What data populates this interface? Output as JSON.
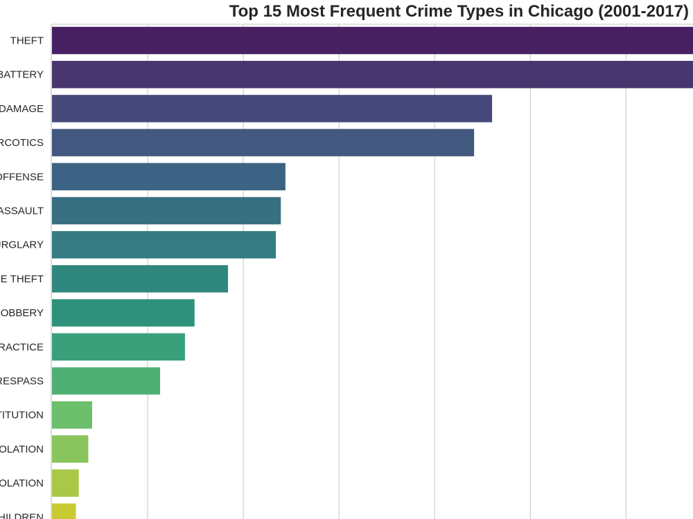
{
  "chart_data": {
    "type": "bar",
    "orientation": "horizontal",
    "title": "Top 15 Most Frequent Crime Types in Chicago (2001-2017)",
    "xlabel": "",
    "ylabel": "",
    "xlim": [
      0,
      33.5
    ],
    "grid": true,
    "categories": [
      "THEFT",
      "BATTERY",
      "DAMAGE",
      "RCOTICS",
      "OFFENSE",
      "ASSAULT",
      "URGLARY",
      "E THEFT",
      "ROBBERY",
      "RACTICE",
      "RESPASS",
      "TITUTION",
      "OLATION",
      "OLATION",
      "HILDREN"
    ],
    "values": [
      34,
      34,
      23,
      22.06,
      12.2,
      11.96,
      11.7,
      9.2,
      7.45,
      6.95,
      5.65,
      2.1,
      1.9,
      1.4,
      1.25
    ],
    "colors": [
      "#482163",
      "#48376f",
      "#464a7b",
      "#42587e",
      "#3c6383",
      "#386f81",
      "#347b82",
      "#30877e",
      "#2e917b",
      "#3aa07c",
      "#4fb076",
      "#6cbf6b",
      "#89c45d",
      "#a8c846",
      "#c8ca32"
    ]
  }
}
